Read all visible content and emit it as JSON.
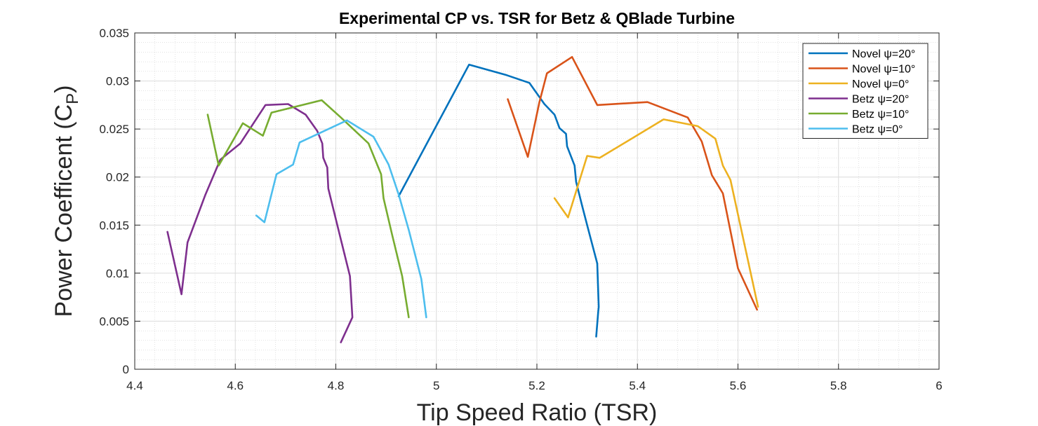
{
  "chart_data": {
    "type": "line",
    "title": "Experimental CP vs. TSR for Betz & QBlade Turbine",
    "xlabel": "Tip Speed Ratio (TSR)",
    "ylabel_main": "Power Coefficent (C",
    "ylabel_sub": "P",
    "ylabel_close": ")",
    "xlim": [
      4.4,
      6
    ],
    "ylim": [
      0,
      0.035
    ],
    "xticks": [
      "4.4",
      "4.6",
      "4.8",
      "5",
      "5.2",
      "5.4",
      "5.6",
      "5.8",
      "6"
    ],
    "xtick_values": [
      4.4,
      4.6,
      4.8,
      5.0,
      5.2,
      5.4,
      5.6,
      5.8,
      6.0
    ],
    "yticks": [
      "0",
      "0.005",
      "0.01",
      "0.015",
      "0.02",
      "0.025",
      "0.03",
      "0.035"
    ],
    "ytick_values": [
      0,
      0.005,
      0.01,
      0.015,
      0.02,
      0.025,
      0.03,
      0.035
    ],
    "grid": true,
    "minor_grid": true,
    "legend_position": "top-right",
    "series": [
      {
        "name": "Novel ψ=20°",
        "color": "#0072BD",
        "points": [
          [
            4.925,
            0.018
          ],
          [
            5.065,
            0.0317
          ],
          [
            5.14,
            0.0306
          ],
          [
            5.185,
            0.0298
          ],
          [
            5.215,
            0.0276
          ],
          [
            5.235,
            0.0265
          ],
          [
            5.245,
            0.0251
          ],
          [
            5.258,
            0.0245
          ],
          [
            5.26,
            0.0232
          ],
          [
            5.275,
            0.0212
          ],
          [
            5.278,
            0.0195
          ],
          [
            5.29,
            0.017
          ],
          [
            5.3,
            0.015
          ],
          [
            5.31,
            0.013
          ],
          [
            5.32,
            0.011
          ],
          [
            5.323,
            0.0065
          ],
          [
            5.322,
            0.006
          ],
          [
            5.318,
            0.0034
          ]
        ]
      },
      {
        "name": "Novel ψ=10°",
        "color": "#D95319",
        "points": [
          [
            5.142,
            0.0281
          ],
          [
            5.182,
            0.0221
          ],
          [
            5.205,
            0.0278
          ],
          [
            5.22,
            0.0308
          ],
          [
            5.27,
            0.0325
          ],
          [
            5.32,
            0.0275
          ],
          [
            5.42,
            0.0278
          ],
          [
            5.5,
            0.0262
          ],
          [
            5.528,
            0.0237
          ],
          [
            5.548,
            0.0202
          ],
          [
            5.57,
            0.0183
          ],
          [
            5.6,
            0.0105
          ],
          [
            5.638,
            0.0062
          ]
        ]
      },
      {
        "name": "Novel ψ=0°",
        "color": "#EDB120",
        "points": [
          [
            5.235,
            0.0178
          ],
          [
            5.262,
            0.0158
          ],
          [
            5.3,
            0.0222
          ],
          [
            5.325,
            0.022
          ],
          [
            5.452,
            0.026
          ],
          [
            5.52,
            0.0253
          ],
          [
            5.555,
            0.024
          ],
          [
            5.57,
            0.0212
          ],
          [
            5.585,
            0.0197
          ],
          [
            5.64,
            0.0065
          ]
        ]
      },
      {
        "name": "Betz ψ=20°",
        "color": "#7E2F8E",
        "points": [
          [
            4.465,
            0.0143
          ],
          [
            4.493,
            0.0078
          ],
          [
            4.505,
            0.0132
          ],
          [
            4.54,
            0.0181
          ],
          [
            4.57,
            0.0218
          ],
          [
            4.61,
            0.0235
          ],
          [
            4.66,
            0.0275
          ],
          [
            4.705,
            0.0276
          ],
          [
            4.74,
            0.0265
          ],
          [
            4.763,
            0.0248
          ],
          [
            4.773,
            0.0235
          ],
          [
            4.775,
            0.022
          ],
          [
            4.783,
            0.021
          ],
          [
            4.785,
            0.0188
          ],
          [
            4.81,
            0.0135
          ],
          [
            4.828,
            0.0097
          ],
          [
            4.833,
            0.0054
          ],
          [
            4.81,
            0.0028
          ]
        ]
      },
      {
        "name": "Betz ψ=10°",
        "color": "#77AC30",
        "points": [
          [
            4.545,
            0.0265
          ],
          [
            4.567,
            0.0212
          ],
          [
            4.615,
            0.0256
          ],
          [
            4.655,
            0.0243
          ],
          [
            4.672,
            0.0267
          ],
          [
            4.772,
            0.028
          ],
          [
            4.81,
            0.0262
          ],
          [
            4.865,
            0.0235
          ],
          [
            4.89,
            0.0203
          ],
          [
            4.895,
            0.0178
          ],
          [
            4.912,
            0.014
          ],
          [
            4.932,
            0.0097
          ],
          [
            4.945,
            0.0054
          ]
        ]
      },
      {
        "name": "Betz ψ=0°",
        "color": "#4DBEEE",
        "points": [
          [
            4.642,
            0.016
          ],
          [
            4.658,
            0.0153
          ],
          [
            4.682,
            0.0203
          ],
          [
            4.715,
            0.0213
          ],
          [
            4.728,
            0.0236
          ],
          [
            4.822,
            0.0259
          ],
          [
            4.875,
            0.0242
          ],
          [
            4.905,
            0.0213
          ],
          [
            4.925,
            0.0182
          ],
          [
            4.945,
            0.0145
          ],
          [
            4.97,
            0.0094
          ],
          [
            4.98,
            0.0054
          ]
        ]
      }
    ]
  }
}
